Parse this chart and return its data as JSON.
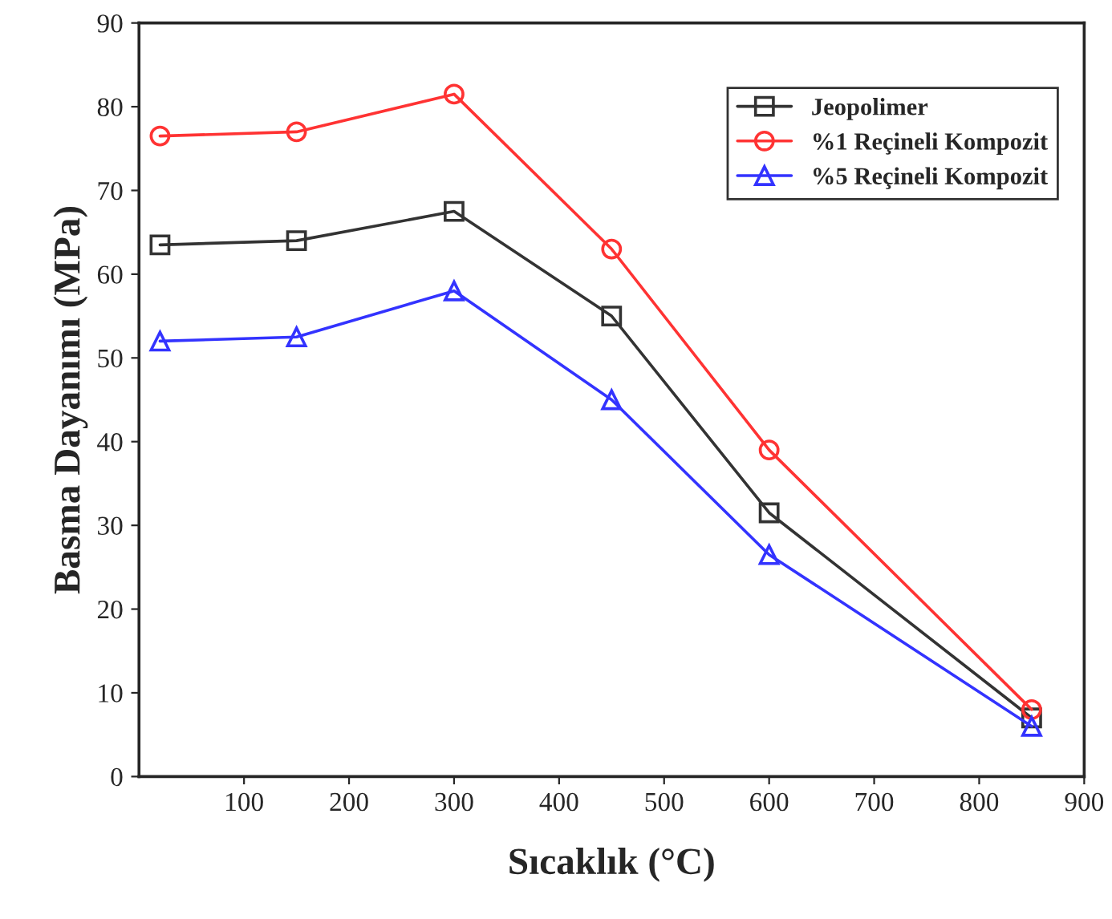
{
  "chart_data": {
    "type": "line",
    "xlabel": "Sıcaklık (°C)",
    "ylabel": "Basma Dayanımı (MPa)",
    "xlim": [
      0,
      900
    ],
    "xticks": [
      100,
      200,
      300,
      400,
      500,
      600,
      700,
      800,
      900
    ],
    "ylim": [
      0,
      90
    ],
    "yticks": [
      0,
      10,
      20,
      30,
      40,
      50,
      60,
      70,
      80,
      90
    ],
    "grid": false,
    "legend": "top right",
    "series": [
      {
        "name": "Jeopolimer",
        "color": "#333333",
        "marker": "square",
        "x": [
          20,
          150,
          300,
          450,
          600,
          850
        ],
        "values": [
          63.5,
          64,
          67.5,
          55,
          31.5,
          7
        ]
      },
      {
        "name": "%1 Reçineli Kompozit",
        "color": "#ff3333",
        "marker": "circle",
        "x": [
          20,
          150,
          300,
          450,
          600,
          850
        ],
        "values": [
          76.5,
          77,
          81.5,
          63,
          39,
          8
        ]
      },
      {
        "name": "%5 Reçineli Kompozit",
        "color": "#3333ff",
        "marker": "triangle",
        "x": [
          20,
          150,
          300,
          450,
          600,
          850
        ],
        "values": [
          52,
          52.5,
          58,
          45,
          26.5,
          6
        ]
      }
    ]
  }
}
